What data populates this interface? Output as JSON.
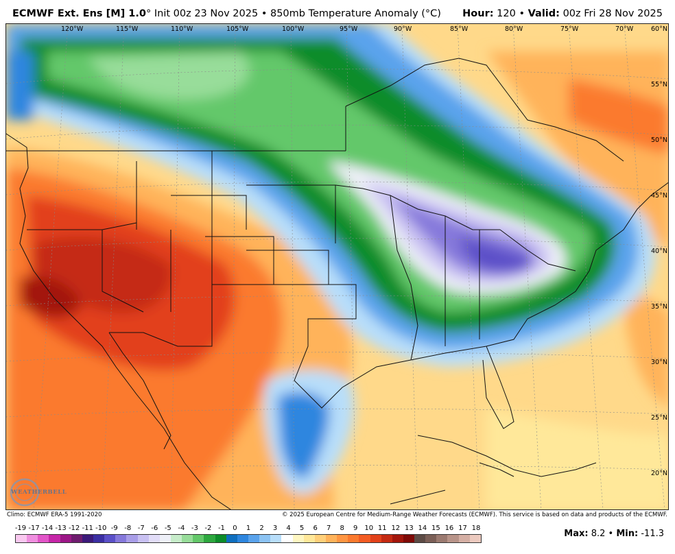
{
  "header": {
    "model": "ECMWF Ext. Ens [M] 1.0",
    "degree": "°",
    "init": "Init 00z 23 Nov 2025",
    "bullet1": "•",
    "product": "850mb Temperature Anomaly (°C)",
    "hour_label": "Hour:",
    "hour_value": "120",
    "bullet2": "•",
    "valid_label": "Valid:",
    "valid_value": "00z Fri 28 Nov 2025"
  },
  "map": {
    "lon_labels": [
      "120°W",
      "115°W",
      "110°W",
      "105°W",
      "100°W",
      "95°W",
      "90°W",
      "85°W",
      "80°W",
      "75°W",
      "70°W"
    ],
    "lat_labels": [
      "60°N",
      "55°N",
      "50°N",
      "45°N",
      "40°N",
      "35°N",
      "30°N",
      "25°N",
      "20°N"
    ]
  },
  "footer": {
    "climo": "Climo: ECMWF ERA-5 1991-2020",
    "copyright": "© 2025 European Centre for Medium-Range Weather Forecasts (ECMWF). This service is based on data and products of the ECMWF."
  },
  "colorbar": {
    "labels": [
      "-19",
      "-17",
      "-14",
      "-13",
      "-12",
      "-11",
      "-10",
      "-9",
      "-8",
      "-7",
      "-6",
      "-5",
      "-4",
      "-3",
      "-2",
      "-1",
      "0",
      "1",
      "2",
      "3",
      "4",
      "5",
      "6",
      "7",
      "8",
      "9",
      "10",
      "11",
      "12",
      "13",
      "14",
      "15",
      "16",
      "17",
      "18"
    ],
    "colors": [
      "#f9c8ef",
      "#ef8fdf",
      "#e255c8",
      "#c626a8",
      "#9c1787",
      "#6f1c6f",
      "#3c1a7a",
      "#3b2fa3",
      "#5b50c8",
      "#8679db",
      "#a99ee8",
      "#c9c1f2",
      "#e2ddf8",
      "#eef0f8",
      "#c7ecca",
      "#98dd9a",
      "#64c86a",
      "#2ea83f",
      "#0d8c2a",
      "#0f6fbf",
      "#2e86df",
      "#5aa3ec",
      "#8cc3f3",
      "#b8defa",
      "#ffffff",
      "#fff7c2",
      "#ffe89a",
      "#ffd07a",
      "#ffb35a",
      "#ff9642",
      "#fb7a2e",
      "#f35c23",
      "#e2411a",
      "#c52a12",
      "#a3160c",
      "#7f0a07",
      "#5d4b45",
      "#7b5f57",
      "#9b7a70",
      "#b89489",
      "#d5afa4",
      "#eccabf"
    ]
  },
  "stats": {
    "max_label": "Max:",
    "max_value": "8.2",
    "bullet": "•",
    "min_label": "Min:",
    "min_value": "-11.3"
  },
  "logo": {
    "text": "WEATHERBELL"
  }
}
